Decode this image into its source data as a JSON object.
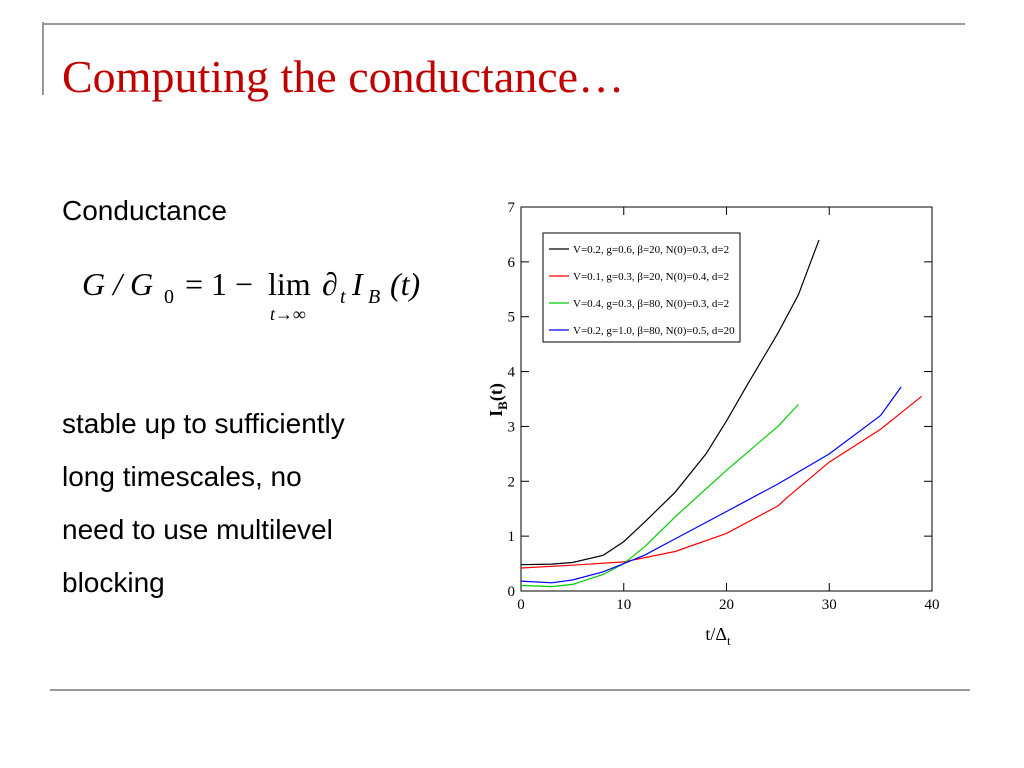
{
  "title": "Computing the conductance…",
  "heading": "Conductance",
  "formula": {
    "lhs": "G / G",
    "lhs_sub": "0",
    "mid": "= 1 − ",
    "lim": "lim",
    "lim_sub": "t→∞",
    "partial": "∂",
    "partial_sub": "t",
    "op": "I",
    "op_sub": "B",
    "arg": "(t)"
  },
  "body": [
    "stable up to sufficiently",
    "long timescales, no",
    "need to use multilevel",
    "blocking"
  ],
  "chart_data": {
    "type": "line",
    "x_label": {
      "main": "t/Δ",
      "sub": "t"
    },
    "y_label": {
      "main": "I",
      "sub": "B",
      "tail": "(t)"
    },
    "xlim": [
      0,
      40
    ],
    "ylim": [
      0,
      7
    ],
    "xticks": [
      0,
      10,
      20,
      30,
      40
    ],
    "yticks": [
      0,
      1,
      2,
      3,
      4,
      5,
      6,
      7
    ],
    "series": [
      {
        "name": "V=0.2, g=0.6, β=20, N(0)=0.3, d=2",
        "color": "#000000",
        "x": [
          0,
          3,
          5,
          8,
          10,
          12,
          15,
          18,
          20,
          22,
          25,
          27,
          29
        ],
        "values": [
          0.48,
          0.49,
          0.52,
          0.65,
          0.9,
          1.25,
          1.8,
          2.5,
          3.1,
          3.75,
          4.7,
          5.4,
          6.4
        ]
      },
      {
        "name": "V=0.1, g=0.3, β=20, N(0)=0.4, d=2",
        "color": "#ff0000",
        "x": [
          0,
          5,
          10,
          15,
          20,
          25,
          26,
          30,
          35,
          39
        ],
        "values": [
          0.42,
          0.47,
          0.53,
          0.72,
          1.05,
          1.55,
          1.72,
          2.35,
          2.95,
          3.55
        ]
      },
      {
        "name": "V=0.4, g=0.3, β=80, N(0)=0.3, d=2",
        "color": "#00cc00",
        "x": [
          0,
          3,
          5,
          8,
          10,
          12,
          15,
          20,
          25,
          27
        ],
        "values": [
          0.1,
          0.08,
          0.12,
          0.3,
          0.5,
          0.8,
          1.35,
          2.2,
          3.0,
          3.4
        ]
      },
      {
        "name": "V=0.2, g=1.0, β=80, N(0)=0.5, d=20",
        "color": "#0000ff",
        "x": [
          0,
          3,
          5,
          8,
          10,
          12,
          15,
          20,
          25,
          30,
          35,
          37
        ],
        "values": [
          0.18,
          0.15,
          0.2,
          0.35,
          0.5,
          0.65,
          0.95,
          1.45,
          1.95,
          2.5,
          3.2,
          3.72
        ]
      }
    ],
    "legend": "top-left"
  }
}
